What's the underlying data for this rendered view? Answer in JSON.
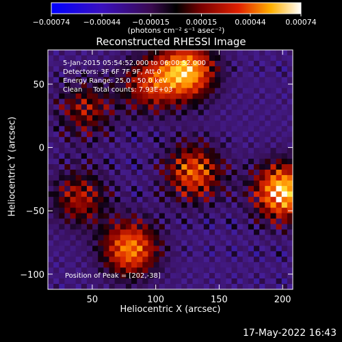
{
  "chart_data": {
    "type": "heatmap",
    "title": "Reconstructed RHESSI Image",
    "xlabel": "Heliocentric X (arcsec)",
    "ylabel": "Heliocentric Y (arcsec)",
    "xlim": [
      15,
      208
    ],
    "ylim": [
      -112,
      77
    ],
    "xticks": [
      "50",
      "100",
      "150",
      "200"
    ],
    "yticks": [
      "50",
      "0",
      "−50",
      "−100"
    ],
    "colorbar": {
      "ticks": [
        "−0.00074",
        "−0.00044",
        "−0.00015",
        "0.00015",
        "0.00044",
        "0.00074"
      ],
      "units": "(photons cm⁻² s⁻¹ asec⁻²)",
      "range": [
        -0.00074,
        0.00074
      ]
    },
    "annotations": {
      "time_range": "5-Jan-2015 05:54:52.000 to 06:00:52.000",
      "detectors": "Detectors: 3F 6F 7F 9F, Att 0",
      "energy_range": "Energy Range: 25.0 - 50.0 keV",
      "clean_counts": "Clean     Total counts: 7.93E+03",
      "peak": "Position of Peak = [202,-38]"
    },
    "bright_sources": [
      {
        "x": 125,
        "y": 60,
        "intensity": 0.9
      },
      {
        "x": 200,
        "y": -35,
        "intensity": 1.0
      },
      {
        "x": 80,
        "y": -80,
        "intensity": 0.8
      },
      {
        "x": 130,
        "y": -20,
        "intensity": 0.7
      },
      {
        "x": 95,
        "y": 50,
        "intensity": 0.55
      },
      {
        "x": 40,
        "y": -40,
        "intensity": 0.5
      },
      {
        "x": 45,
        "y": 30,
        "intensity": 0.45
      }
    ]
  },
  "footer": {
    "date": "17-May-2022 16:43"
  }
}
